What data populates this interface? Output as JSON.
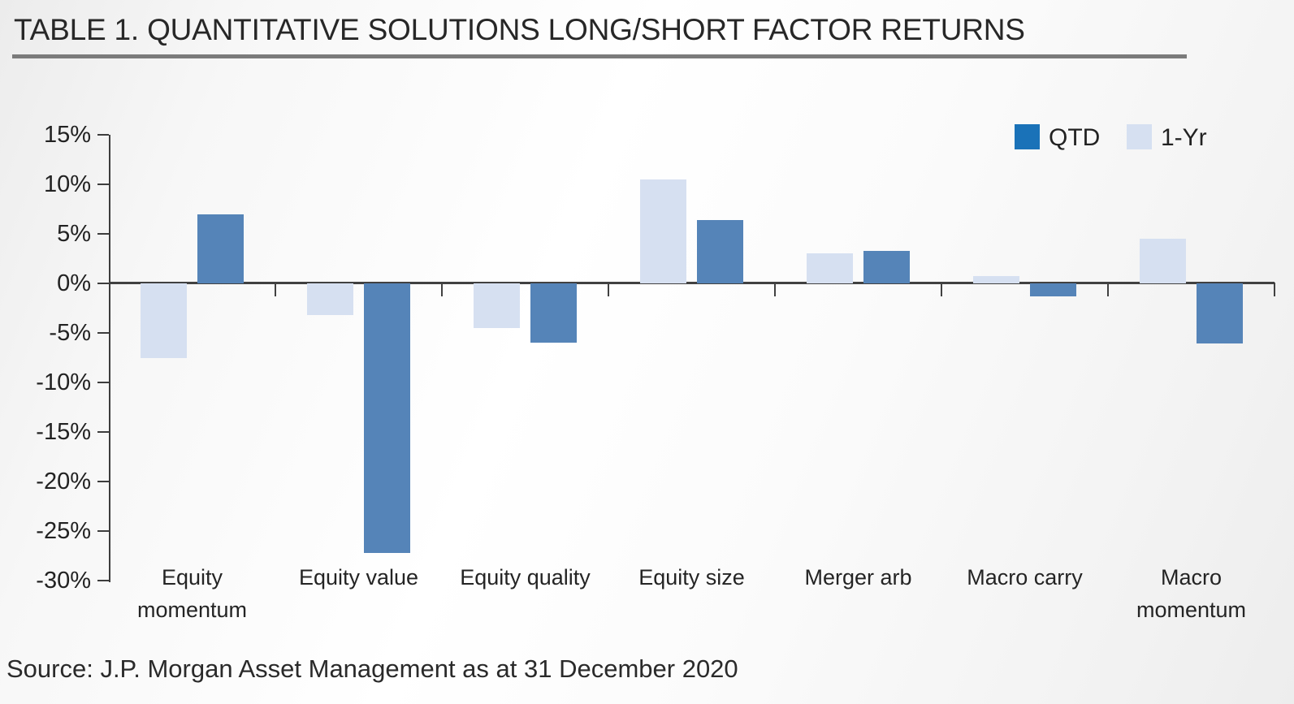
{
  "page": {
    "source_text": "Source: J.P. Morgan Asset Management as at 31 December 2020"
  },
  "chart_data": {
    "type": "bar",
    "title": "TABLE 1. QUANTITATIVE SOLUTIONS LONG/SHORT FACTOR RETURNS",
    "categories": [
      {
        "label": "Equity momentum",
        "lines": [
          "Equity",
          "momentum"
        ]
      },
      {
        "label": "Equity value",
        "lines": [
          "Equity value"
        ]
      },
      {
        "label": "Equity quality",
        "lines": [
          "Equity quality"
        ]
      },
      {
        "label": "Equity size",
        "lines": [
          "Equity size"
        ]
      },
      {
        "label": "Merger arb",
        "lines": [
          "Merger arb"
        ]
      },
      {
        "label": "Macro carry",
        "lines": [
          "Macro carry"
        ]
      },
      {
        "label": "Macro momentum",
        "lines": [
          "Macro",
          "momentum"
        ]
      }
    ],
    "series": [
      {
        "name": "QTD",
        "legend_color": "#1a72b8",
        "bar_color": "#5584b8",
        "values": [
          7.0,
          -27.2,
          -6.0,
          6.4,
          3.3,
          -1.3,
          -6.1
        ]
      },
      {
        "name": "1-Yr",
        "legend_color": "#d6e0f1",
        "bar_color": "#d6e0f1",
        "values": [
          -7.5,
          -3.2,
          -4.5,
          10.5,
          3.0,
          0.7,
          4.5
        ]
      }
    ],
    "group_order": [
      "1-Yr",
      "QTD"
    ],
    "y_axis": {
      "min": -30,
      "max": 15,
      "step": 5,
      "tick_format": "percent"
    },
    "grid": false,
    "legend_position": "top-right"
  }
}
